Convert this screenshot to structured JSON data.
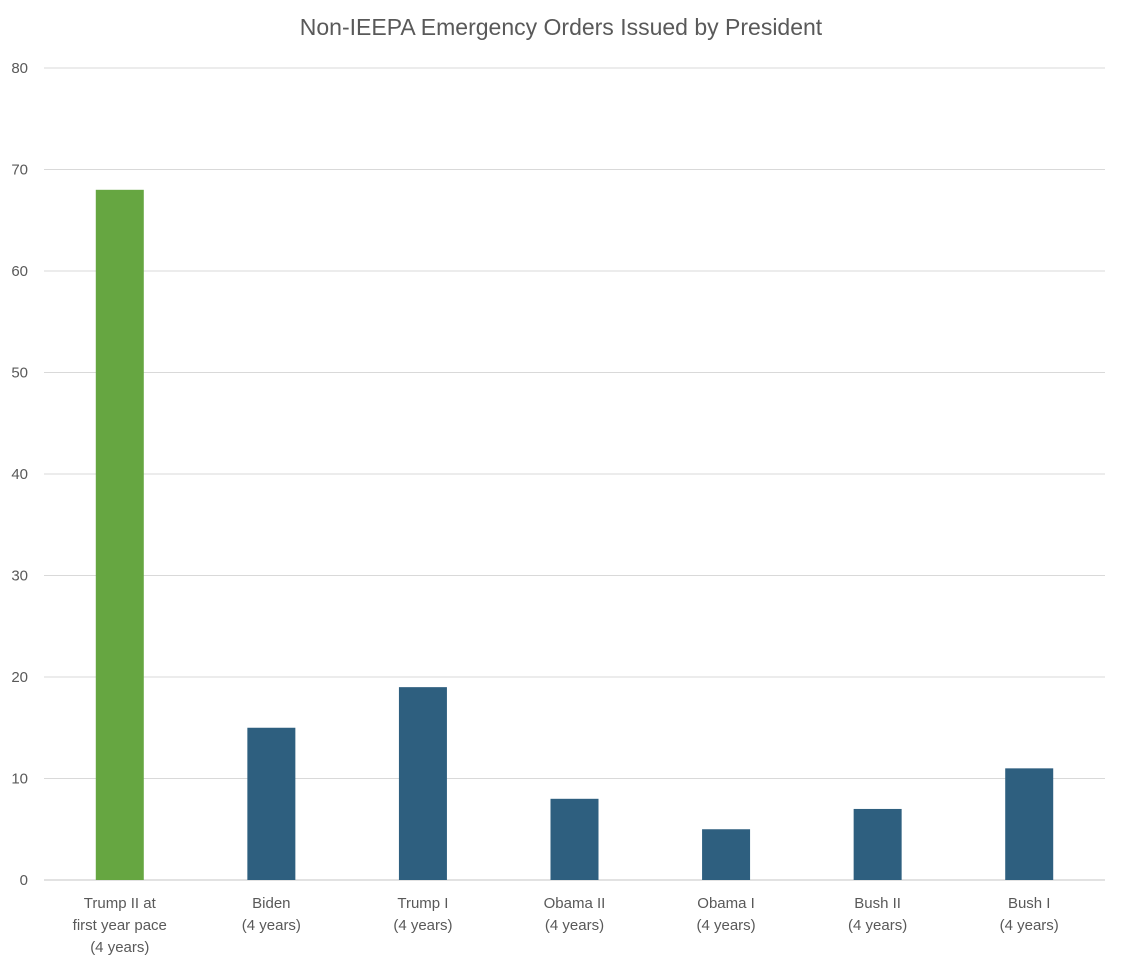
{
  "chart_data": {
    "type": "bar",
    "title": "Non-IEEPA Emergency Orders Issued by President",
    "xlabel": "",
    "ylabel": "",
    "ylim": [
      0,
      80
    ],
    "yticks": [
      0,
      10,
      20,
      30,
      40,
      50,
      60,
      70,
      80
    ],
    "grid": true,
    "categories": [
      [
        "Trump II at",
        "first year pace",
        "(4 years)"
      ],
      [
        "Biden",
        "(4 years)"
      ],
      [
        "Trump I",
        "(4 years)"
      ],
      [
        "Obama II",
        "(4 years)"
      ],
      [
        "Obama I",
        "(4 years)"
      ],
      [
        "Bush II",
        "(4 years)"
      ],
      [
        "Bush I",
        "(4 years)"
      ]
    ],
    "values": [
      68,
      15,
      19,
      8,
      5,
      7,
      11
    ],
    "colors": [
      "#66a641",
      "#2e5f7f",
      "#2e5f7f",
      "#2e5f7f",
      "#2e5f7f",
      "#2e5f7f",
      "#2e5f7f"
    ],
    "grid_color": "#d9d9d9",
    "text_color": "#595959"
  }
}
